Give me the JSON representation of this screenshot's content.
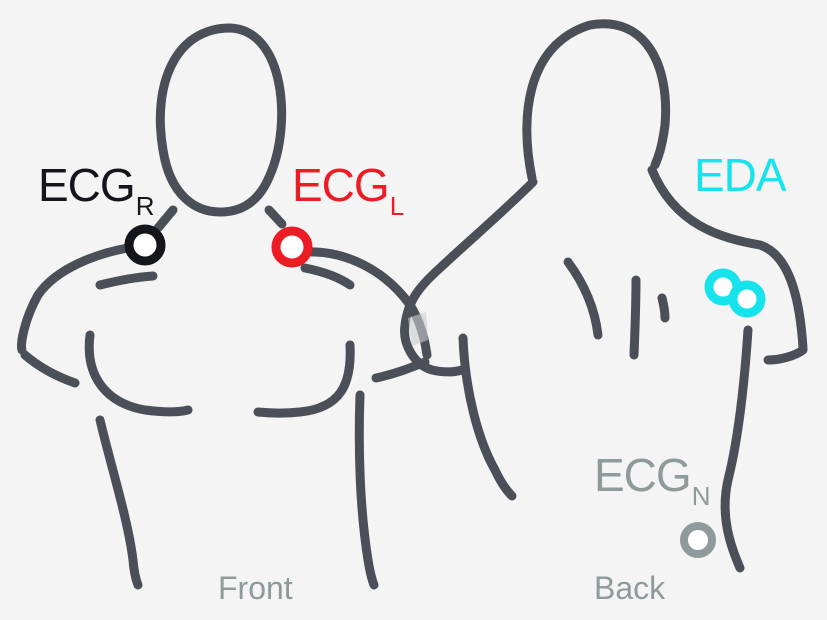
{
  "labels": {
    "ecg_r": {
      "main": "ECG",
      "sub": "R",
      "color": "#15161c"
    },
    "ecg_l": {
      "main": "ECG",
      "sub": "L",
      "color": "#ec1c24"
    },
    "eda": {
      "main": "EDA",
      "color": "#17e3ec"
    },
    "ecg_n": {
      "main": "ECG",
      "sub": "N",
      "color": "#8f9a9a"
    }
  },
  "captions": {
    "front": "Front",
    "back": "Back",
    "color": "#8f9a9a"
  },
  "colors": {
    "outline": "#4b5058",
    "background": "#f4f4f4"
  }
}
